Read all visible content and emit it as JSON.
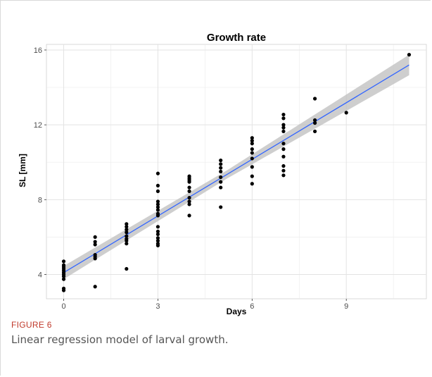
{
  "figure": {
    "label": "FIGURE 6",
    "caption": "Linear regression model of larval growth."
  },
  "colors": {
    "points": "#000000",
    "fit_line": "#3366FF",
    "ribbon": "#BEBEBE",
    "grid": "#EBEBEB",
    "caption_label": "#C0392B"
  },
  "chart_data": {
    "type": "scatter",
    "title": "Growth rate",
    "xlabel": "Days",
    "ylabel": "SL [mm]",
    "xlim": [
      -0.55,
      11.55
    ],
    "ylim": [
      2.7,
      16.3
    ],
    "x_ticks": [
      0,
      3,
      6,
      9
    ],
    "y_ticks": [
      4,
      8,
      12,
      16
    ],
    "grid": true,
    "legend": "none",
    "points": [
      {
        "x": 0,
        "y": 4.7
      },
      {
        "x": 0,
        "y": 4.5
      },
      {
        "x": 0,
        "y": 4.4
      },
      {
        "x": 0,
        "y": 4.3
      },
      {
        "x": 0,
        "y": 4.2
      },
      {
        "x": 0,
        "y": 4.1
      },
      {
        "x": 0,
        "y": 4.0
      },
      {
        "x": 0,
        "y": 3.9
      },
      {
        "x": 0,
        "y": 3.75
      },
      {
        "x": 0,
        "y": 3.25
      },
      {
        "x": 0,
        "y": 3.15
      },
      {
        "x": 1,
        "y": 6.0
      },
      {
        "x": 1,
        "y": 5.75
      },
      {
        "x": 1,
        "y": 5.6
      },
      {
        "x": 1,
        "y": 5.05
      },
      {
        "x": 1,
        "y": 4.95
      },
      {
        "x": 1,
        "y": 4.85
      },
      {
        "x": 1,
        "y": 3.35
      },
      {
        "x": 2,
        "y": 6.7
      },
      {
        "x": 2,
        "y": 6.55
      },
      {
        "x": 2,
        "y": 6.4
      },
      {
        "x": 2,
        "y": 6.25
      },
      {
        "x": 2,
        "y": 6.05
      },
      {
        "x": 2,
        "y": 5.9
      },
      {
        "x": 2,
        "y": 5.8
      },
      {
        "x": 2,
        "y": 5.65
      },
      {
        "x": 2,
        "y": 4.3
      },
      {
        "x": 3,
        "y": 9.4
      },
      {
        "x": 3,
        "y": 8.75
      },
      {
        "x": 3,
        "y": 8.45
      },
      {
        "x": 3,
        "y": 7.9
      },
      {
        "x": 3,
        "y": 7.75
      },
      {
        "x": 3,
        "y": 7.6
      },
      {
        "x": 3,
        "y": 7.45
      },
      {
        "x": 3,
        "y": 7.25
      },
      {
        "x": 3,
        "y": 7.15
      },
      {
        "x": 3,
        "y": 6.55
      },
      {
        "x": 3,
        "y": 6.3
      },
      {
        "x": 3,
        "y": 6.15
      },
      {
        "x": 3,
        "y": 5.95
      },
      {
        "x": 3,
        "y": 5.8
      },
      {
        "x": 3,
        "y": 5.65
      },
      {
        "x": 3,
        "y": 5.55
      },
      {
        "x": 4,
        "y": 9.25
      },
      {
        "x": 4,
        "y": 9.15
      },
      {
        "x": 4,
        "y": 9.05
      },
      {
        "x": 4,
        "y": 8.95
      },
      {
        "x": 4,
        "y": 8.65
      },
      {
        "x": 4,
        "y": 8.45
      },
      {
        "x": 4,
        "y": 8.1
      },
      {
        "x": 4,
        "y": 7.9
      },
      {
        "x": 4,
        "y": 7.75
      },
      {
        "x": 4,
        "y": 7.15
      },
      {
        "x": 5,
        "y": 10.1
      },
      {
        "x": 5,
        "y": 9.9
      },
      {
        "x": 5,
        "y": 9.7
      },
      {
        "x": 5,
        "y": 9.5
      },
      {
        "x": 5,
        "y": 9.2
      },
      {
        "x": 5,
        "y": 8.95
      },
      {
        "x": 5,
        "y": 8.65
      },
      {
        "x": 5,
        "y": 7.6
      },
      {
        "x": 6,
        "y": 11.3
      },
      {
        "x": 6,
        "y": 11.15
      },
      {
        "x": 6,
        "y": 11.0
      },
      {
        "x": 6,
        "y": 10.7
      },
      {
        "x": 6,
        "y": 10.5
      },
      {
        "x": 6,
        "y": 10.2
      },
      {
        "x": 6,
        "y": 9.75
      },
      {
        "x": 6,
        "y": 9.25
      },
      {
        "x": 6,
        "y": 8.85
      },
      {
        "x": 7,
        "y": 12.55
      },
      {
        "x": 7,
        "y": 12.35
      },
      {
        "x": 7,
        "y": 12.0
      },
      {
        "x": 7,
        "y": 11.85
      },
      {
        "x": 7,
        "y": 11.65
      },
      {
        "x": 7,
        "y": 11.0
      },
      {
        "x": 7,
        "y": 10.7
      },
      {
        "x": 7,
        "y": 10.3
      },
      {
        "x": 7,
        "y": 9.8
      },
      {
        "x": 7,
        "y": 9.55
      },
      {
        "x": 7,
        "y": 9.3
      },
      {
        "x": 8,
        "y": 13.4
      },
      {
        "x": 8,
        "y": 12.25
      },
      {
        "x": 8,
        "y": 12.1
      },
      {
        "x": 8,
        "y": 11.65
      },
      {
        "x": 9,
        "y": 12.65
      },
      {
        "x": 11,
        "y": 15.75
      }
    ],
    "regression": {
      "x": [
        0,
        11
      ],
      "y": [
        4.1,
        15.2
      ],
      "ci_lower": [
        3.75,
        14.65
      ],
      "ci_upper": [
        4.45,
        15.75
      ],
      "ci_mid_x": 5.2,
      "ci_mid_half_width": 0.22
    }
  }
}
